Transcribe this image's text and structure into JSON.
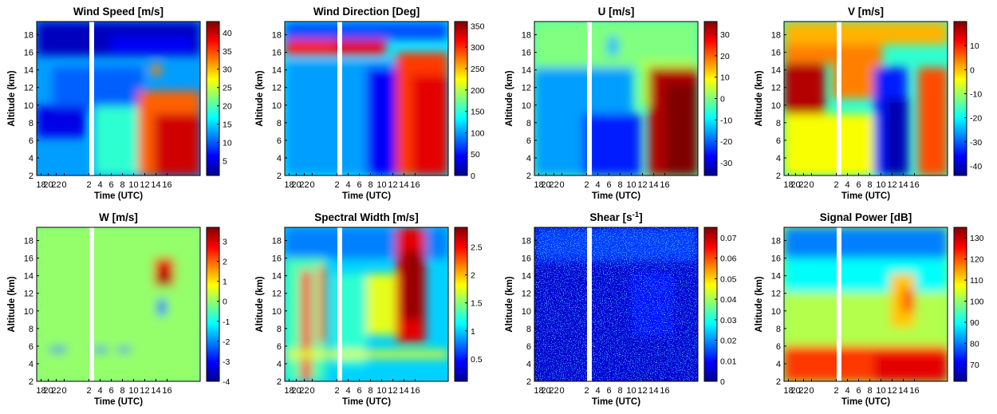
{
  "figure": {
    "colormap": "jet",
    "panels": [
      {
        "title": "Wind Speed [m/s]",
        "title_sup": "",
        "xlabel": "Time (UTC)",
        "ylabel": "Altitude (km)"
      },
      {
        "title": "Wind Direction [Deg]",
        "title_sup": "",
        "xlabel": "Time (UTC)",
        "ylabel": "Altitude (km)"
      },
      {
        "title": "U [m/s]",
        "title_sup": "",
        "xlabel": "Time (UTC)",
        "ylabel": "Altitude (km)"
      },
      {
        "title": "V [m/s]",
        "title_sup": "",
        "xlabel": "Time (UTC)",
        "ylabel": "Altitude (km)"
      },
      {
        "title": "W [m/s]",
        "title_sup": "",
        "xlabel": "Time (UTC)",
        "ylabel": "Altitude (km)"
      },
      {
        "title": "Spectral Width [m/s]",
        "title_sup": "",
        "xlabel": "Time (UTC)",
        "ylabel": "Altitude (km)"
      },
      {
        "title": "Shear [s",
        "title_sup": "-1",
        "title_end": "]",
        "xlabel": "Time (UTC)",
        "ylabel": "Altitude (km)"
      },
      {
        "title": "Signal Power [dB]",
        "title_sup": "",
        "xlabel": "Time (UTC)",
        "ylabel": "Altitude (km)"
      }
    ]
  },
  "chart_data": [
    {
      "type": "heatmap",
      "title": "Wind Speed [m/s]",
      "xlabel": "Time (UTC)",
      "ylabel": "Altitude (km)",
      "x_ticks": [
        "18",
        "20",
        "22",
        "0",
        "2",
        "4",
        "6",
        "8",
        "10",
        "12",
        "14",
        "16"
      ],
      "y_ticks": [
        2,
        4,
        6,
        8,
        10,
        12,
        14,
        16,
        18
      ],
      "ylim": [
        2,
        19.5
      ],
      "colorbar": {
        "range": [
          1,
          43
        ],
        "ticks": [
          "5",
          "10",
          "15",
          "20",
          "25",
          "30",
          "35",
          "40"
        ]
      },
      "data_gap": {
        "between": [
          "0",
          "2"
        ]
      },
      "features": [
        "strong winds (25-40 m/s) below 12 km after 10 UTC",
        "weak winds (~5 m/s) above 15 km",
        "local maximum near 14 km at 10 UTC"
      ]
    },
    {
      "type": "heatmap",
      "title": "Wind Direction [Deg]",
      "xlabel": "Time (UTC)",
      "ylabel": "Altitude (km)",
      "x_ticks": [
        "18",
        "20",
        "22",
        "0",
        "2",
        "4",
        "6",
        "8",
        "10",
        "12",
        "14",
        "16"
      ],
      "y_ticks": [
        2,
        4,
        6,
        8,
        10,
        12,
        14,
        16,
        18
      ],
      "ylim": [
        2,
        19.5
      ],
      "colorbar": {
        "range": [
          0,
          360
        ],
        "ticks": [
          "0",
          "50",
          "100",
          "150",
          "200",
          "250",
          "300",
          "350"
        ]
      },
      "data_gap": {
        "between": [
          "0",
          "2"
        ]
      },
      "features": [
        "~300 deg band at 15-16.5 km before 8 UTC",
        "westerly (250-320 deg) regime below 14 km after 10 UTC",
        "~100-150 deg elsewhere"
      ]
    },
    {
      "type": "heatmap",
      "title": "U [m/s]",
      "xlabel": "Time (UTC)",
      "ylabel": "Altitude (km)",
      "x_ticks": [
        "18",
        "20",
        "22",
        "0",
        "2",
        "4",
        "6",
        "8",
        "10",
        "12",
        "14",
        "16"
      ],
      "y_ticks": [
        2,
        4,
        6,
        8,
        10,
        12,
        14,
        16,
        18
      ],
      "ylim": [
        2,
        19.5
      ],
      "colorbar": {
        "range": [
          -36,
          36
        ],
        "ticks": [
          "-30",
          "-20",
          "-10",
          "0",
          "10",
          "20",
          "30"
        ]
      },
      "data_gap": {
        "between": [
          "0",
          "2"
        ]
      },
      "features": [
        "strong positive U (20-35 m/s) below 13 km after 11 UTC",
        "negative U (-10 to -25 m/s) at low levels before 10 UTC"
      ]
    },
    {
      "type": "heatmap",
      "title": "V [m/s]",
      "xlabel": "Time (UTC)",
      "ylabel": "Altitude (km)",
      "x_ticks": [
        "18",
        "20",
        "22",
        "0",
        "2",
        "4",
        "6",
        "8",
        "10",
        "12",
        "14",
        "16"
      ],
      "y_ticks": [
        2,
        4,
        6,
        8,
        10,
        12,
        14,
        16,
        18
      ],
      "ylim": [
        2,
        19.5
      ],
      "colorbar": {
        "range": [
          -44,
          20
        ],
        "ticks": [
          "10",
          "0",
          "-10",
          "-20",
          "-30",
          "-40"
        ]
      },
      "data_gap": {
        "between": [
          "0",
          "2"
        ]
      },
      "features": [
        "positive V (5-15 m/s) at 10-14 km before 0 UTC",
        "strong negative V (-30 to -40 m/s) near 10-12 UTC below 10 km"
      ]
    },
    {
      "type": "heatmap",
      "title": "W [m/s]",
      "xlabel": "Time (UTC)",
      "ylabel": "Altitude (km)",
      "x_ticks": [
        "18",
        "20",
        "22",
        "0",
        "2",
        "4",
        "6",
        "8",
        "10",
        "12",
        "14",
        "16"
      ],
      "y_ticks": [
        2,
        4,
        6,
        8,
        10,
        12,
        14,
        16,
        18
      ],
      "ylim": [
        2,
        19.5
      ],
      "colorbar": {
        "range": [
          -4,
          3.7
        ],
        "ticks": [
          "3",
          "2",
          "1",
          "0",
          "-1",
          "-2",
          "-3",
          "-4"
        ]
      },
      "data_gap": {
        "between": [
          "0",
          "2"
        ]
      },
      "features": [
        "near-zero vertical velocity overall",
        "updraft (+2 to +3 m/s) at 11-16 km around 10-12 UTC",
        "downward patches (~-3 m/s) at ~5 km"
      ]
    },
    {
      "type": "heatmap",
      "title": "Spectral Width [m/s]",
      "xlabel": "Time (UTC)",
      "ylabel": "Altitude (km)",
      "x_ticks": [
        "18",
        "20",
        "22",
        "0",
        "2",
        "4",
        "6",
        "8",
        "10",
        "12",
        "14",
        "16"
      ],
      "y_ticks": [
        2,
        4,
        6,
        8,
        10,
        12,
        14,
        16,
        18
      ],
      "ylim": [
        2,
        19.5
      ],
      "colorbar": {
        "range": [
          0.1,
          2.85
        ],
        "ticks": [
          "0.5",
          "1",
          "1.5",
          "2",
          "2.5"
        ]
      },
      "data_gap": {
        "between": [
          "0",
          "2"
        ]
      },
      "features": [
        "large widths (2-2.8 m/s) at 8-19 km around 10-12 UTC",
        "enhanced widths near 5 km",
        "vertical streaks near 20 and 22 UTC"
      ]
    },
    {
      "type": "heatmap",
      "title": "Shear [s-1]",
      "xlabel": "Time (UTC)",
      "ylabel": "Altitude (km)",
      "x_ticks": [
        "18",
        "20",
        "22",
        "0",
        "2",
        "4",
        "6",
        "8",
        "10",
        "12",
        "14",
        "16"
      ],
      "y_ticks": [
        2,
        4,
        6,
        8,
        10,
        12,
        14,
        16,
        18
      ],
      "ylim": [
        2,
        19.5
      ],
      "colorbar": {
        "range": [
          0,
          0.075
        ],
        "ticks": [
          "0",
          "0.01",
          "0.02",
          "0.03",
          "0.04",
          "0.05",
          "0.06",
          "0.07"
        ]
      },
      "data_gap": {
        "between": [
          "0",
          "2"
        ]
      },
      "features": [
        "mostly low shear (<0.01 s-1)",
        "speckled enhanced shear above 15 km and at 8-14 km near 10-12 UTC"
      ]
    },
    {
      "type": "heatmap",
      "title": "Signal Power [dB]",
      "xlabel": "Time (UTC)",
      "ylabel": "Altitude (km)",
      "x_ticks": [
        "18",
        "20",
        "22",
        "0",
        "2",
        "4",
        "6",
        "8",
        "10",
        "12",
        "14",
        "16"
      ],
      "y_ticks": [
        2,
        4,
        6,
        8,
        10,
        12,
        14,
        16,
        18
      ],
      "ylim": [
        2,
        19.5
      ],
      "colorbar": {
        "range": [
          62,
          135
        ],
        "ticks": [
          "70",
          "80",
          "90",
          "100",
          "110",
          "120",
          "130"
        ]
      },
      "data_gap": {
        "between": [
          "0",
          "2"
        ]
      },
      "features": [
        "high power (110-130 dB) below 5 km",
        "power decreasing with altitude to ~70 dB above 15 km"
      ]
    }
  ]
}
